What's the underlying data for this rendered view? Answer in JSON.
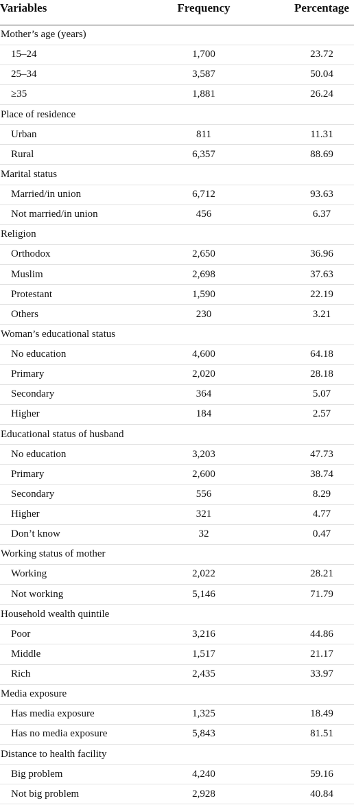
{
  "table": {
    "columns": [
      "Variables",
      "Frequency",
      "Percentage"
    ],
    "sections": [
      {
        "label": "Mother’s age (years)",
        "rows": [
          [
            "15–24",
            "1,700",
            "23.72"
          ],
          [
            "25–34",
            "3,587",
            "50.04"
          ],
          [
            "≥35",
            "1,881",
            "26.24"
          ]
        ]
      },
      {
        "label": "Place of residence",
        "rows": [
          [
            "Urban",
            "811",
            "11.31"
          ],
          [
            "Rural",
            "6,357",
            "88.69"
          ]
        ]
      },
      {
        "label": "Marital status",
        "rows": [
          [
            "Married/in union",
            "6,712",
            "93.63"
          ],
          [
            "Not married/in union",
            "456",
            "6.37"
          ]
        ]
      },
      {
        "label": "Religion",
        "rows": [
          [
            "Orthodox",
            "2,650",
            "36.96"
          ],
          [
            "Muslim",
            "2,698",
            "37.63"
          ],
          [
            "Protestant",
            "1,590",
            "22.19"
          ],
          [
            "Others",
            "230",
            "3.21"
          ]
        ]
      },
      {
        "label": "Woman’s educational status",
        "rows": [
          [
            "No education",
            "4,600",
            "64.18"
          ],
          [
            "Primary",
            "2,020",
            "28.18"
          ],
          [
            "Secondary",
            "364",
            "5.07"
          ],
          [
            "Higher",
            "184",
            "2.57"
          ]
        ]
      },
      {
        "label": "Educational status of husband",
        "rows": [
          [
            "No education",
            "3,203",
            "47.73"
          ],
          [
            "Primary",
            "2,600",
            "38.74"
          ],
          [
            "Secondary",
            "556",
            "8.29"
          ],
          [
            "Higher",
            "321",
            "4.77"
          ],
          [
            "Don’t know",
            "32",
            "0.47"
          ]
        ]
      },
      {
        "label": "Working status of mother",
        "rows": [
          [
            "Working",
            "2,022",
            "28.21"
          ],
          [
            "Not working",
            "5,146",
            "71.79"
          ]
        ]
      },
      {
        "label": "Household wealth quintile",
        "rows": [
          [
            "Poor",
            "3,216",
            "44.86"
          ],
          [
            "Middle",
            "1,517",
            "21.17"
          ],
          [
            "Rich",
            "2,435",
            "33.97"
          ]
        ]
      },
      {
        "label": "Media exposure",
        "rows": [
          [
            "Has media exposure",
            "1,325",
            "18.49"
          ],
          [
            "Has no media exposure",
            "5,843",
            "81.51"
          ]
        ]
      },
      {
        "label": "Distance to health facility",
        "rows": [
          [
            "Big problem",
            "4,240",
            "59.16"
          ],
          [
            "Not big problem",
            "2,928",
            "40.84"
          ]
        ]
      }
    ]
  }
}
